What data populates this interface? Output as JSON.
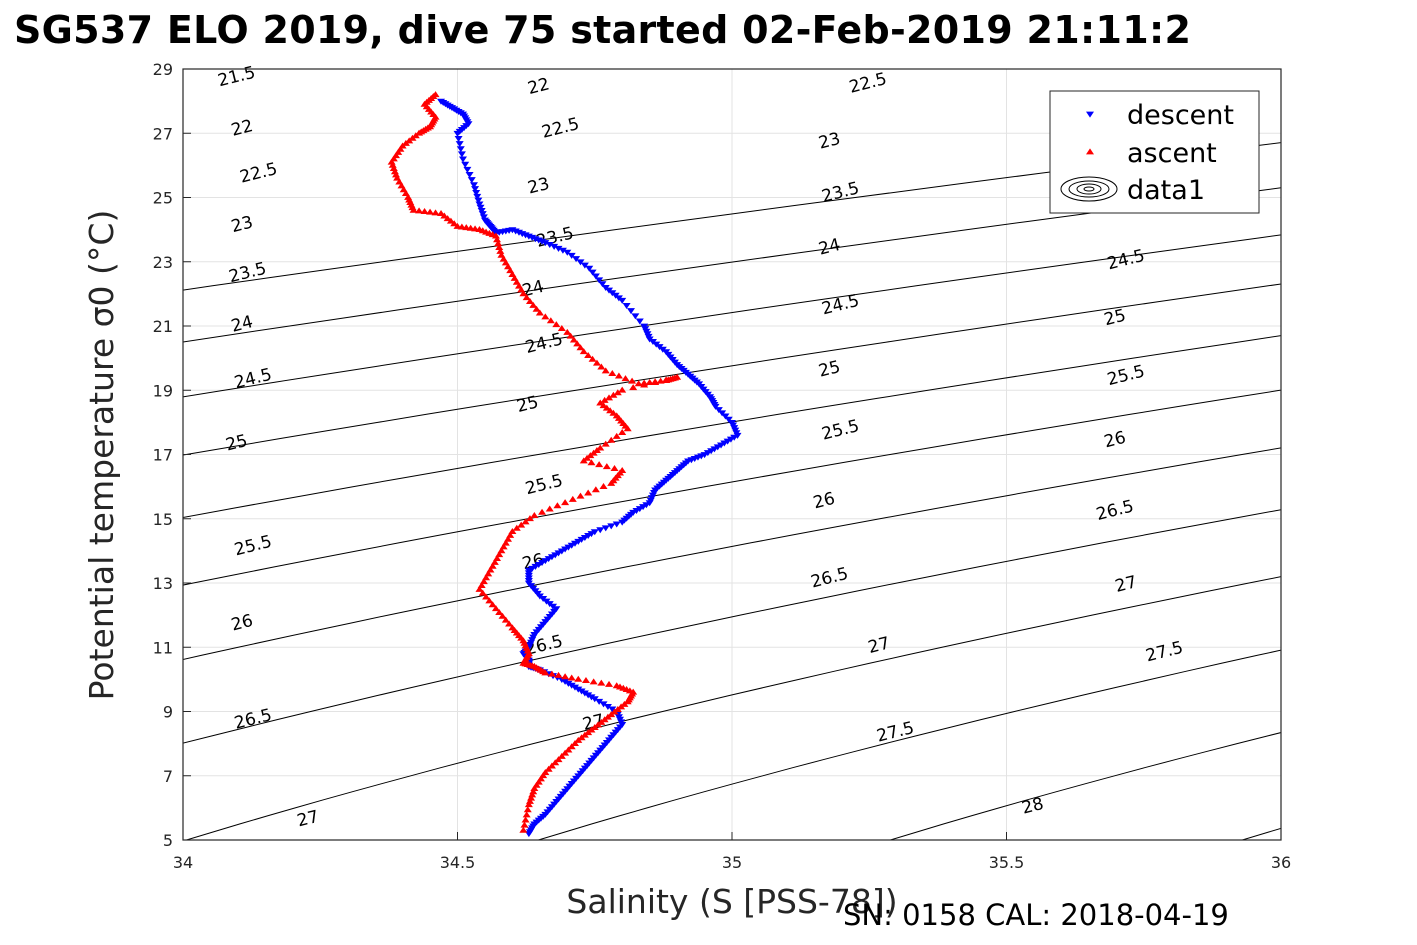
{
  "title": "SG537 ELO 2019, dive 75 started 02-Feb-2019 21:11:2",
  "footer": "SN: 0158  CAL: 2018-04-19",
  "chart_data": {
    "type": "scatter",
    "xlabel": "Salinity (S [PSS-78])",
    "ylabel": "Potential temperature σ0 (°C)",
    "xlim": [
      34,
      36
    ],
    "ylim": [
      5,
      29
    ],
    "x_ticks": [
      "34",
      "34.5",
      "35",
      "35.5",
      "36"
    ],
    "y_ticks": [
      "5",
      "7",
      "9",
      "11",
      "13",
      "15",
      "17",
      "19",
      "21",
      "23",
      "25",
      "27",
      "29"
    ],
    "grid": true,
    "legend_position": "top-right",
    "legend": [
      {
        "label": "descent",
        "marker": "triangle-down",
        "color": "#0000ff"
      },
      {
        "label": "ascent",
        "marker": "triangle-up",
        "color": "#ff0000"
      },
      {
        "label": "data1",
        "marker": "contour-ellipses",
        "color": "#000000"
      }
    ],
    "contours": {
      "levels": [
        "21.5",
        "22",
        "22.5",
        "23",
        "23.5",
        "24",
        "24.5",
        "25",
        "25.5",
        "26",
        "26.5",
        "27",
        "27.5",
        "28"
      ],
      "labels": [
        {
          "text": "21.5",
          "s": 34.1,
          "t": 28.6
        },
        {
          "text": "22",
          "s": 34.11,
          "t": 27.0
        },
        {
          "text": "22",
          "s": 34.65,
          "t": 28.3
        },
        {
          "text": "22.5",
          "s": 34.14,
          "t": 25.6
        },
        {
          "text": "22.5",
          "s": 34.69,
          "t": 27.0
        },
        {
          "text": "22.5",
          "s": 35.25,
          "t": 28.4
        },
        {
          "text": "23",
          "s": 34.11,
          "t": 24.0
        },
        {
          "text": "23",
          "s": 34.65,
          "t": 25.2
        },
        {
          "text": "23",
          "s": 35.18,
          "t": 26.6
        },
        {
          "text": "23.5",
          "s": 34.12,
          "t": 22.5
        },
        {
          "text": "23.5",
          "s": 34.68,
          "t": 23.6
        },
        {
          "text": "23.5",
          "s": 35.2,
          "t": 25.0
        },
        {
          "text": "24",
          "s": 34.11,
          "t": 20.9
        },
        {
          "text": "24",
          "s": 34.64,
          "t": 22.0
        },
        {
          "text": "24",
          "s": 35.18,
          "t": 23.3
        },
        {
          "text": "24.5",
          "s": 34.13,
          "t": 19.2
        },
        {
          "text": "24.5",
          "s": 34.66,
          "t": 20.3
        },
        {
          "text": "24.5",
          "s": 35.2,
          "t": 21.5
        },
        {
          "text": "24.5",
          "s": 35.72,
          "t": 22.9
        },
        {
          "text": "25",
          "s": 34.1,
          "t": 17.2
        },
        {
          "text": "25",
          "s": 34.63,
          "t": 18.4
        },
        {
          "text": "25",
          "s": 35.18,
          "t": 19.5
        },
        {
          "text": "25",
          "s": 35.7,
          "t": 21.1
        },
        {
          "text": "25.5",
          "s": 34.13,
          "t": 14.0
        },
        {
          "text": "25.5",
          "s": 34.66,
          "t": 15.9
        },
        {
          "text": "25.5",
          "s": 35.2,
          "t": 17.6
        },
        {
          "text": "25.5",
          "s": 35.72,
          "t": 19.3
        },
        {
          "text": "26",
          "s": 34.11,
          "t": 11.6
        },
        {
          "text": "26",
          "s": 34.64,
          "t": 13.5
        },
        {
          "text": "26",
          "s": 35.17,
          "t": 15.4
        },
        {
          "text": "26",
          "s": 35.7,
          "t": 17.3
        },
        {
          "text": "26.5",
          "s": 34.13,
          "t": 8.6
        },
        {
          "text": "26.5",
          "s": 34.66,
          "t": 10.9
        },
        {
          "text": "26.5",
          "s": 35.18,
          "t": 13.0
        },
        {
          "text": "26.5",
          "s": 35.7,
          "t": 15.1
        },
        {
          "text": "27",
          "s": 34.23,
          "t": 5.5
        },
        {
          "text": "27",
          "s": 34.75,
          "t": 8.5
        },
        {
          "text": "27",
          "s": 35.27,
          "t": 10.9
        },
        {
          "text": "27",
          "s": 35.72,
          "t": 12.8
        },
        {
          "text": "27.5",
          "s": 35.3,
          "t": 8.2
        },
        {
          "text": "27.5",
          "s": 35.79,
          "t": 10.7
        },
        {
          "text": "28",
          "s": 35.55,
          "t": 5.9
        }
      ]
    },
    "series": [
      {
        "name": "descent",
        "x": [
          34.47,
          34.49,
          34.51,
          34.52,
          34.5,
          34.51,
          34.53,
          34.54,
          34.55,
          34.56,
          34.57,
          34.6,
          34.63,
          34.66,
          34.7,
          34.74,
          34.77,
          34.8,
          34.84,
          34.85,
          34.88,
          34.9,
          34.92,
          34.94,
          34.96,
          34.97,
          35.0,
          35.01,
          34.98,
          34.95,
          34.92,
          34.9,
          34.88,
          34.86,
          34.85,
          34.82,
          34.8,
          34.75,
          34.72,
          34.69,
          34.66,
          34.63,
          34.63,
          34.65,
          34.68,
          34.66,
          34.64,
          34.63,
          34.62,
          34.63,
          34.63,
          34.65,
          34.69,
          34.72,
          34.75,
          34.79,
          34.8,
          34.78,
          34.76,
          34.74,
          34.72,
          34.7,
          34.68,
          34.66,
          34.64,
          34.63
        ],
        "y": [
          28.0,
          27.8,
          27.6,
          27.3,
          27.0,
          26.2,
          25.4,
          24.8,
          24.3,
          24.1,
          23.9,
          24.0,
          23.8,
          23.6,
          23.3,
          22.8,
          22.2,
          21.8,
          21.0,
          20.6,
          20.2,
          19.8,
          19.5,
          19.2,
          18.8,
          18.5,
          18.0,
          17.6,
          17.3,
          17.0,
          16.8,
          16.5,
          16.2,
          15.9,
          15.5,
          15.2,
          14.9,
          14.6,
          14.3,
          14.0,
          13.7,
          13.4,
          13.0,
          12.6,
          12.2,
          11.8,
          11.4,
          11.0,
          10.8,
          10.6,
          10.4,
          10.3,
          10.0,
          9.7,
          9.4,
          9.0,
          8.6,
          8.2,
          7.8,
          7.4,
          7.0,
          6.6,
          6.2,
          5.8,
          5.5,
          5.2
        ]
      },
      {
        "name": "ascent",
        "x": [
          34.46,
          34.44,
          34.46,
          34.45,
          34.43,
          34.4,
          34.38,
          34.39,
          34.41,
          34.42,
          34.47,
          34.5,
          34.54,
          34.57,
          34.58,
          34.6,
          34.62,
          34.65,
          34.7,
          34.73,
          34.77,
          34.83,
          34.88,
          34.9,
          34.8,
          34.76,
          34.79,
          34.81,
          34.76,
          34.73,
          34.8,
          34.78,
          34.71,
          34.64,
          34.6,
          34.58,
          34.56,
          34.54,
          34.57,
          34.6,
          34.62,
          34.63,
          34.62,
          34.64,
          34.66,
          34.72,
          34.79,
          34.82,
          34.81,
          34.78,
          34.75,
          34.72,
          34.69,
          34.66,
          34.64,
          34.63,
          34.62
        ],
        "y": [
          28.2,
          27.9,
          27.5,
          27.2,
          27.0,
          26.6,
          26.1,
          25.6,
          25.0,
          24.6,
          24.5,
          24.1,
          24.0,
          23.8,
          23.2,
          22.6,
          22.0,
          21.4,
          20.8,
          20.2,
          19.6,
          19.2,
          19.3,
          19.4,
          19.0,
          18.6,
          18.2,
          17.8,
          17.2,
          16.8,
          16.5,
          16.1,
          15.6,
          15.1,
          14.6,
          14.0,
          13.4,
          12.8,
          12.2,
          11.6,
          11.2,
          10.8,
          10.5,
          10.4,
          10.2,
          10.0,
          9.8,
          9.6,
          9.3,
          8.9,
          8.5,
          8.1,
          7.6,
          7.1,
          6.6,
          6.1,
          5.3
        ]
      }
    ]
  }
}
